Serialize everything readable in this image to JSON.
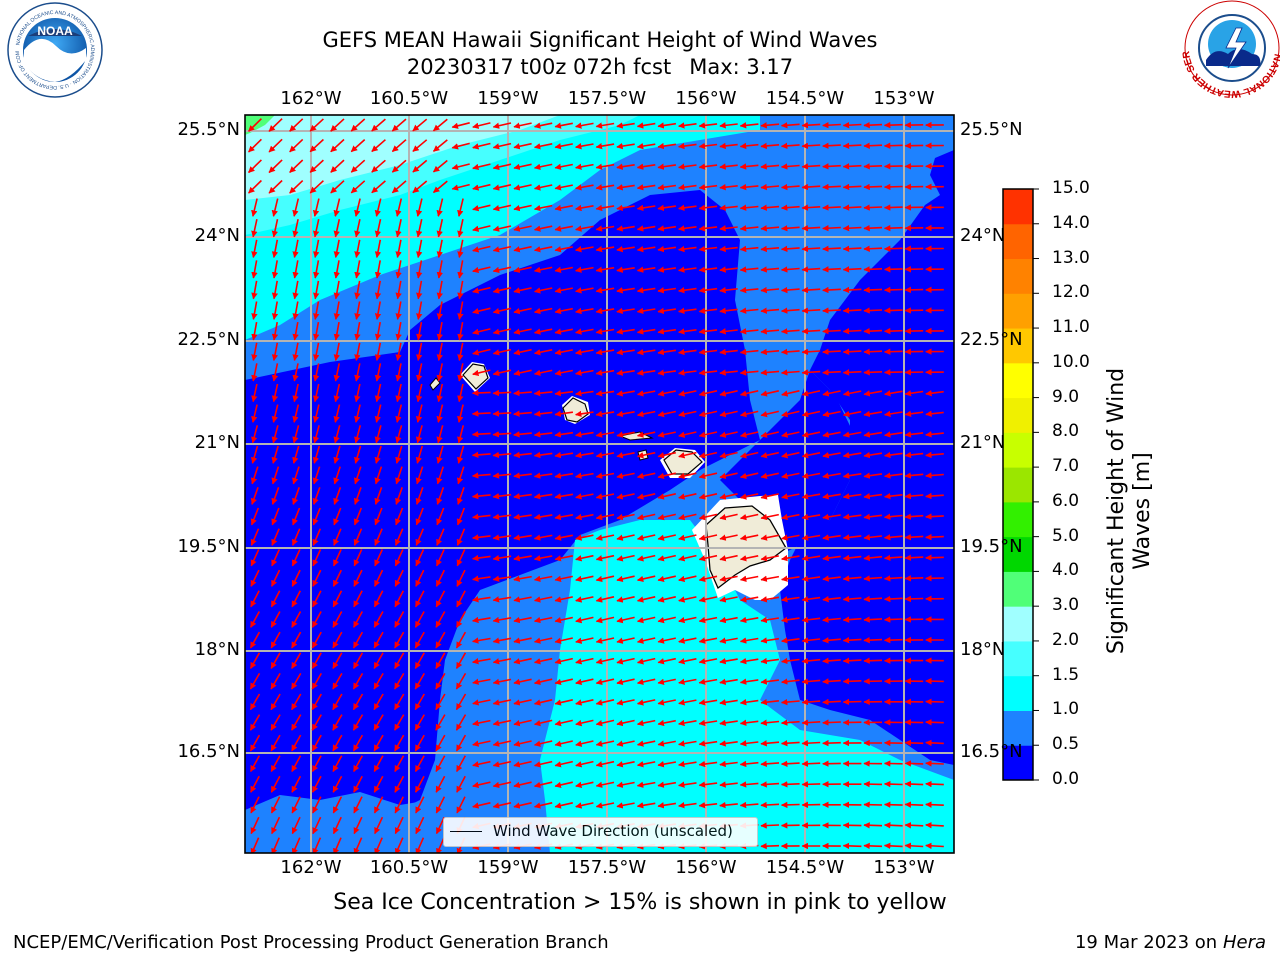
{
  "header": {
    "title": "GEFS MEAN Hawaii Significant Height of Wind Waves",
    "subtitle": "20230317 t00z 072h fcst",
    "max_label": "Max: 3.17"
  },
  "logos": {
    "left": "NOAA",
    "left_ring": "NATIONAL OCEANIC AND ATMOSPHERIC ADMINISTRATION · U.S. DEPARTMENT OF COMMERCE",
    "right_ring": "NATIONAL WEATHER SERVICE"
  },
  "map": {
    "lon_ticks": [
      "162°W",
      "160.5°W",
      "159°W",
      "157.5°W",
      "156°W",
      "154.5°W",
      "153°W"
    ],
    "lat_ticks": [
      "25.5°N",
      "24°N",
      "22.5°N",
      "21°N",
      "19.5°N",
      "18°N",
      "16.5°N"
    ],
    "legend_label": "Wind Wave Direction (unscaled)",
    "max_value": 3.17
  },
  "colorbar": {
    "title": "Significant Height of Wind Waves [m]",
    "levels": [
      0.0,
      0.5,
      1.0,
      1.5,
      2.0,
      3.0,
      4.0,
      5.0,
      6.0,
      7.0,
      8.0,
      9.0,
      10.0,
      11.0,
      12.0,
      13.0,
      14.0,
      15.0
    ],
    "tick_labels": [
      "0.0",
      "0.5",
      "1.0",
      "1.5",
      "2.0",
      "3.0",
      "4.0",
      "5.0",
      "6.0",
      "7.0",
      "8.0",
      "9.0",
      "10.0",
      "11.0",
      "12.0",
      "13.0",
      "14.0",
      "15.0"
    ],
    "colors": [
      "#0000ff",
      "#1e82ff",
      "#00ffff",
      "#46ffff",
      "#a0ffff",
      "#50ff78",
      "#00d700",
      "#32f000",
      "#9be600",
      "#c8ff00",
      "#f0f000",
      "#ffff00",
      "#ffc800",
      "#ffa000",
      "#ff8200",
      "#ff6400",
      "#ff3200"
    ]
  },
  "colors": {
    "arrows": "#ff0000",
    "land": "#f0ecd8",
    "grid": "#b4b4b4"
  },
  "footer": {
    "note": "Sea Ice Concentration > 15% is shown in pink to yellow",
    "left": "NCEP/EMC/Verification Post Processing Product Generation Branch",
    "right_date": "19 Mar 2023 on",
    "right_host": "Hera"
  }
}
